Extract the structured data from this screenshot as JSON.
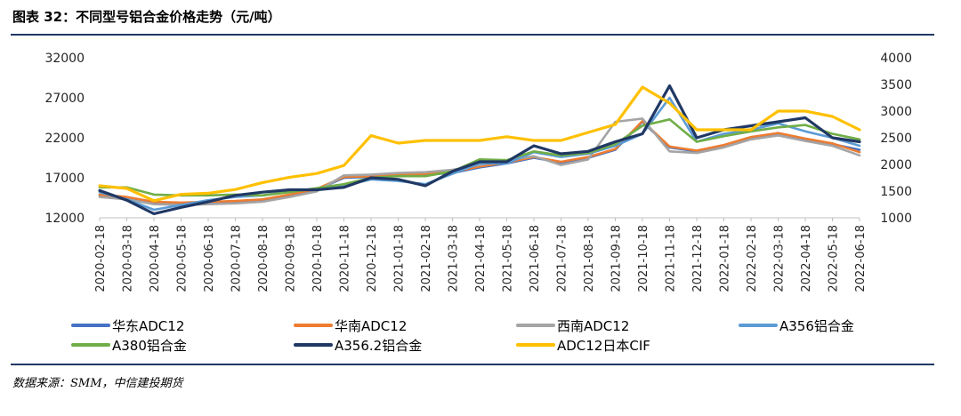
{
  "title": "图表 32：不同型号铝合金价格走势（元/吨）",
  "source": "数据来源：SMM，中信建投期货",
  "chart_data": {
    "type": "line",
    "title": "图表 32：不同型号铝合金价格走势（元/吨）",
    "x_tick_labels": [
      "2020-02-18",
      "2020-03-18",
      "2020-04-18",
      "2020-05-18",
      "2020-06-18",
      "2020-07-18",
      "2020-08-18",
      "2020-09-18",
      "2020-10-18",
      "2020-11-18",
      "2020-12-18",
      "2021-01-18",
      "2021-02-18",
      "2021-03-18",
      "2021-04-18",
      "2021-05-18",
      "2021-06-18",
      "2021-07-18",
      "2021-08-18",
      "2021-09-18",
      "2021-10-18",
      "2021-11-18",
      "2021-12-18",
      "2022-01-18",
      "2022-02-18",
      "2022-03-18",
      "2022-04-18",
      "2022-05-18",
      "2022-06-18"
    ],
    "y_left": {
      "ticks": [
        12000,
        17000,
        22000,
        27000,
        32000
      ],
      "ylim": [
        12000,
        32000
      ]
    },
    "y_right": {
      "ticks": [
        1000,
        1500,
        2000,
        2500,
        3000,
        3500,
        4000
      ],
      "ylim": [
        1000,
        4000
      ]
    },
    "grid": false,
    "legend_position": "bottom",
    "series": [
      {
        "name": "华东ADC12",
        "axis": "left",
        "color": "#4472c4",
        "x": [
          "2020-02-18",
          "2020-03-18",
          "2020-04-18",
          "2020-05-18",
          "2020-06-18",
          "2020-07-18",
          "2020-08-18",
          "2020-09-18",
          "2020-10-18",
          "2020-11-18",
          "2020-12-18",
          "2021-01-18",
          "2021-02-18",
          "2021-03-18",
          "2021-04-18",
          "2021-05-18",
          "2021-06-18",
          "2021-07-18",
          "2021-08-18",
          "2021-09-18",
          "2021-10-18",
          "2021-11-18",
          "2021-12-18",
          "2022-01-18",
          "2022-02-18",
          "2022-03-18",
          "2022-04-18",
          "2022-05-18",
          "2022-06-18"
        ],
        "values": [
          14800,
          14500,
          13900,
          13800,
          13900,
          14000,
          14200,
          14800,
          15500,
          17000,
          17100,
          17300,
          17400,
          17600,
          18300,
          18800,
          19500,
          18900,
          19500,
          20500,
          24000,
          20800,
          20300,
          21000,
          22000,
          22500,
          21800,
          21200,
          20500
        ]
      },
      {
        "name": "华南ADC12",
        "axis": "left",
        "color": "#ed7d31",
        "x": [
          "2020-02-18",
          "2020-03-18",
          "2020-04-18",
          "2020-05-18",
          "2020-06-18",
          "2020-07-18",
          "2020-08-18",
          "2020-09-18",
          "2020-10-18",
          "2020-11-18",
          "2020-12-18",
          "2021-01-18",
          "2021-02-18",
          "2021-03-18",
          "2021-04-18",
          "2021-05-18",
          "2021-06-18",
          "2021-07-18",
          "2021-08-18",
          "2021-09-18",
          "2021-10-18",
          "2021-11-18",
          "2021-12-18",
          "2022-01-18",
          "2022-02-18",
          "2022-03-18",
          "2022-04-18",
          "2022-05-18",
          "2022-06-18"
        ],
        "values": [
          14900,
          14600,
          14000,
          13900,
          14000,
          14100,
          14300,
          14900,
          15600,
          17100,
          17200,
          17400,
          17500,
          17700,
          18400,
          18900,
          19600,
          19000,
          19600,
          20600,
          24100,
          20900,
          20400,
          21100,
          22100,
          22600,
          21900,
          21300,
          20200
        ]
      },
      {
        "name": "西南ADC12",
        "axis": "left",
        "color": "#a5a5a5",
        "x": [
          "2020-02-18",
          "2020-03-18",
          "2020-04-18",
          "2020-05-18",
          "2020-06-18",
          "2020-07-18",
          "2020-08-18",
          "2020-09-18",
          "2020-10-18",
          "2020-11-18",
          "2020-12-18",
          "2021-01-18",
          "2021-02-18",
          "2021-03-18",
          "2021-04-18",
          "2021-05-18",
          "2021-06-18",
          "2021-07-18",
          "2021-08-18",
          "2021-09-18",
          "2021-10-18",
          "2021-11-18",
          "2021-12-18",
          "2022-01-18",
          "2022-02-18",
          "2022-03-18",
          "2022-04-18",
          "2022-05-18",
          "2022-06-18"
        ],
        "values": [
          14600,
          14300,
          13700,
          13600,
          13700,
          13800,
          14000,
          14600,
          15300,
          17300,
          17400,
          17600,
          17700,
          18000,
          18600,
          19200,
          19700,
          18600,
          19300,
          24000,
          24400,
          20300,
          20100,
          20800,
          21800,
          22300,
          21600,
          21000,
          19800
        ]
      },
      {
        "name": "A356铝合金",
        "axis": "left",
        "color": "#5b9bd5",
        "x": [
          "2020-02-18",
          "2020-03-18",
          "2020-04-18",
          "2020-05-18",
          "2020-06-18",
          "2020-07-18",
          "2020-08-18",
          "2020-09-18",
          "2020-10-18",
          "2020-11-18",
          "2020-12-18",
          "2021-01-18",
          "2021-02-18",
          "2021-03-18",
          "2021-04-18",
          "2021-05-18",
          "2021-06-18",
          "2021-07-18",
          "2021-08-18",
          "2021-09-18",
          "2021-10-18",
          "2021-11-18",
          "2021-12-18",
          "2022-01-18",
          "2022-02-18",
          "2022-03-18",
          "2022-04-18",
          "2022-05-18",
          "2022-06-18"
        ],
        "values": [
          15200,
          14300,
          13000,
          13600,
          14200,
          14600,
          14800,
          15300,
          15600,
          16000,
          16800,
          16600,
          16200,
          17500,
          18800,
          18800,
          20200,
          19600,
          20000,
          21000,
          22500,
          27000,
          21500,
          22500,
          23000,
          23800,
          22800,
          22000,
          21000
        ]
      },
      {
        "name": "A380铝合金",
        "axis": "left",
        "color": "#70ad47",
        "x": [
          "2020-02-18",
          "2020-03-18",
          "2020-04-18",
          "2020-05-18",
          "2020-06-18",
          "2020-07-18",
          "2020-08-18",
          "2020-09-18",
          "2020-10-18",
          "2020-11-18",
          "2020-12-18",
          "2021-01-18",
          "2021-02-18",
          "2021-03-18",
          "2021-04-18",
          "2021-05-18",
          "2021-06-18",
          "2021-07-18",
          "2021-08-18",
          "2021-09-18",
          "2021-10-18",
          "2021-11-18",
          "2021-12-18",
          "2022-01-18",
          "2022-02-18",
          "2022-03-18",
          "2022-04-18",
          "2022-05-18",
          "2022-06-18"
        ],
        "values": [
          15800,
          15800,
          14900,
          14800,
          14800,
          14900,
          14800,
          15200,
          15700,
          16200,
          17000,
          17200,
          17200,
          17800,
          19300,
          19200,
          20300,
          19800,
          20100,
          21200,
          23500,
          24300,
          21500,
          22200,
          22800,
          23300,
          23600,
          22500,
          21800
        ]
      },
      {
        "name": "A356.2铝合金",
        "axis": "left",
        "color": "#203864",
        "x": [
          "2020-02-18",
          "2020-03-18",
          "2020-04-18",
          "2020-05-18",
          "2020-06-18",
          "2020-07-18",
          "2020-08-18",
          "2020-09-18",
          "2020-10-18",
          "2020-11-18",
          "2020-12-18",
          "2021-01-18",
          "2021-02-18",
          "2021-03-18",
          "2021-04-18",
          "2021-05-18",
          "2021-06-18",
          "2021-07-18",
          "2021-08-18",
          "2021-09-18",
          "2021-10-18",
          "2021-11-18",
          "2021-12-18",
          "2022-01-18",
          "2022-02-18",
          "2022-03-18",
          "2022-04-18",
          "2022-05-18",
          "2022-06-18"
        ],
        "values": [
          15400,
          14200,
          12500,
          13300,
          14000,
          14800,
          15200,
          15500,
          15500,
          15800,
          17000,
          16800,
          16000,
          17800,
          19000,
          19000,
          21000,
          20000,
          20300,
          21500,
          22500,
          28500,
          22000,
          23000,
          23500,
          24000,
          24500,
          22000,
          21500
        ]
      },
      {
        "name": "ADC12日本CIF",
        "axis": "right",
        "color": "#ffc000",
        "x": [
          "2020-02-18",
          "2020-03-18",
          "2020-04-18",
          "2020-05-18",
          "2020-06-18",
          "2020-07-18",
          "2020-08-18",
          "2020-09-18",
          "2020-10-18",
          "2020-11-18",
          "2020-12-18",
          "2021-01-18",
          "2021-02-18",
          "2021-03-18",
          "2021-04-18",
          "2021-05-18",
          "2021-06-18",
          "2021-07-18",
          "2021-08-18",
          "2021-09-18",
          "2021-10-18",
          "2021-11-18",
          "2021-12-18",
          "2022-01-18",
          "2022-02-18",
          "2022-03-18",
          "2022-04-18",
          "2022-05-18",
          "2022-06-18"
        ],
        "values": [
          1600,
          1550,
          1320,
          1440,
          1460,
          1530,
          1660,
          1760,
          1830,
          1980,
          2540,
          2400,
          2450,
          2450,
          2450,
          2520,
          2450,
          2450,
          2600,
          2750,
          3450,
          3150,
          2650,
          2650,
          2650,
          3000,
          3000,
          2900,
          2650
        ]
      }
    ]
  }
}
